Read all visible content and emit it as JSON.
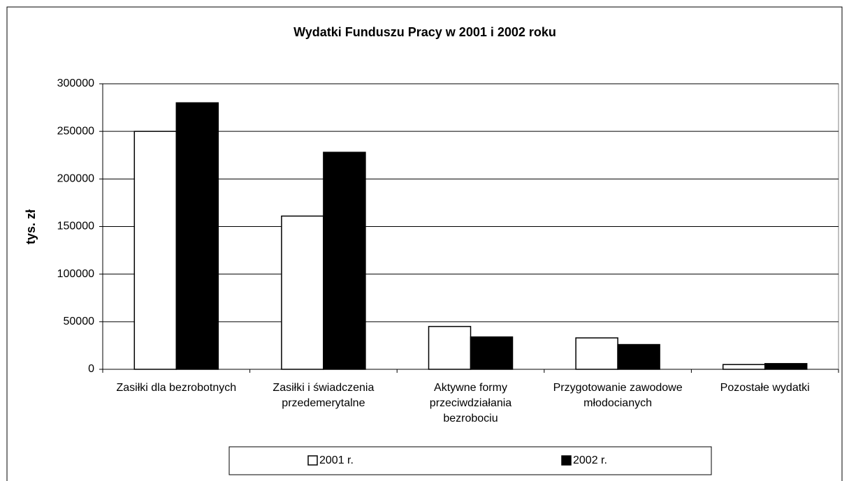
{
  "chart_data": {
    "type": "bar",
    "title": "Wydatki Funduszu Pracy w 2001 i 2002 roku",
    "y_label": "tys. zł",
    "categories": [
      "Zasiłki dla bezrobotnych",
      "Zasiłki i świadczenia przedemerytalne",
      "Aktywne formy przeciwdziałania bezrobociu",
      "Przygotowanie zawodowe młodocianych",
      "Pozostałe wydatki"
    ],
    "series": [
      {
        "name": "2001 r.",
        "color": "#ffffff",
        "values": [
          250000,
          161000,
          45000,
          33000,
          5000
        ]
      },
      {
        "name": "2002 r.",
        "color": "#000000",
        "values": [
          280000,
          228000,
          34000,
          26000,
          6000
        ]
      }
    ],
    "ylim": [
      0,
      300000
    ],
    "yticks": [
      0,
      50000,
      100000,
      150000,
      200000,
      250000,
      300000
    ],
    "grid": true,
    "legend": "bottom"
  }
}
